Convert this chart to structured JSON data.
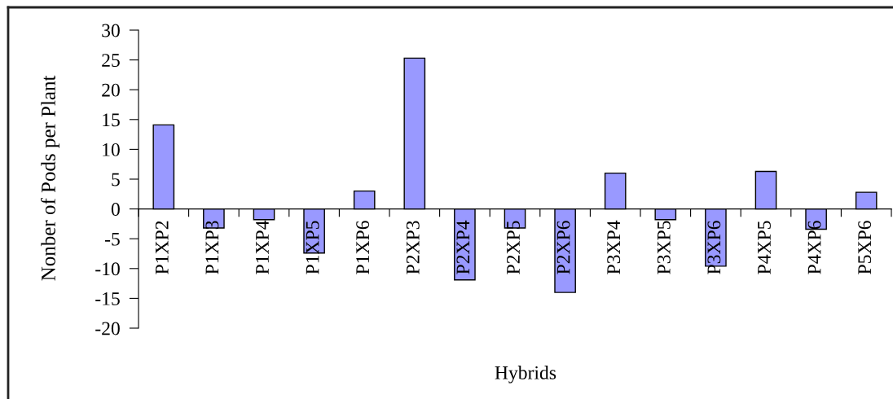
{
  "chart_data": {
    "type": "bar",
    "xlabel": "Hybrids",
    "ylabel": "Nonber of Pods per Plant",
    "categories": [
      "P1XP2",
      "P1XP3",
      "P1XP4",
      "P1XP5",
      "P1XP6",
      "P2XP3",
      "P2XP4",
      "P2XP5",
      "P2XP6",
      "P3XP4",
      "P3XP5",
      "P3XP6",
      "P4XP5",
      "P4XP6",
      "P5XP6"
    ],
    "values": [
      14.1,
      -3.2,
      -1.8,
      -7.4,
      3.0,
      25.3,
      -11.9,
      -3.2,
      -14.0,
      6.0,
      -1.8,
      -9.6,
      6.3,
      -3.4,
      2.8
    ],
    "color": "#9999ff",
    "ylim": [
      -20,
      30
    ],
    "yticks": [
      -20,
      -15,
      -10,
      -5,
      0,
      5,
      10,
      15,
      20,
      25,
      30
    ],
    "grid": false
  }
}
